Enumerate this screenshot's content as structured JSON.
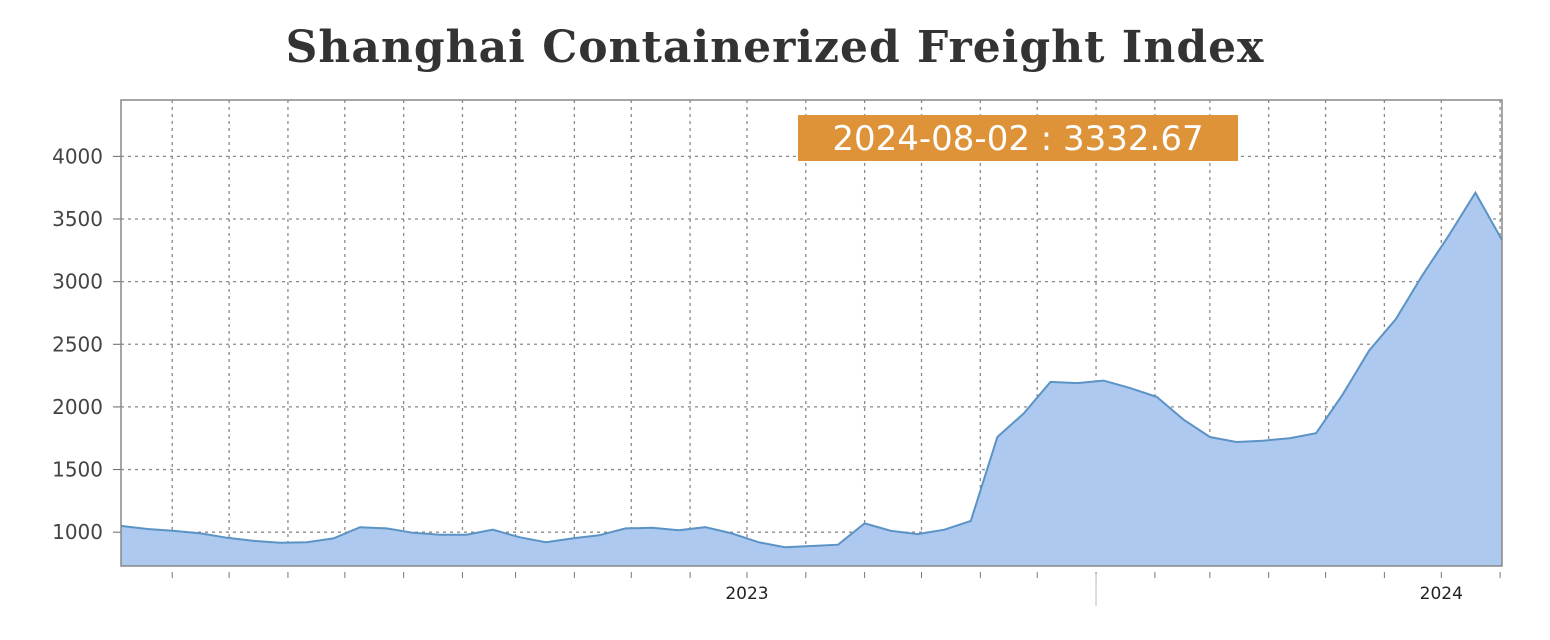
{
  "chart_data": {
    "type": "area",
    "title": "Shanghai Containerized Freight Index",
    "xlabel": "",
    "ylabel": "",
    "ylim": [
      730,
      4450
    ],
    "y_ticks": [
      1000,
      1500,
      2000,
      2500,
      3000,
      3500,
      4000
    ],
    "y_tick_labels": [
      "1000",
      "1500",
      "2000",
      "2500",
      "3000",
      "3500",
      "4000"
    ],
    "x_tick_labels": [
      "2023",
      "2024"
    ],
    "xlim": [
      "2022-08-05",
      "2024-08-02"
    ],
    "grid": true,
    "colors": {
      "fill": "#adc9f0",
      "line": "#5b93c5",
      "tooltip": "#de9338",
      "frame": "#888888"
    },
    "tooltip": {
      "date": "2024-08-02",
      "value": "3332.67",
      "separator": " : "
    },
    "series": [
      {
        "x": [
          "2022-08-05",
          "2022-08-19",
          "2022-09-02",
          "2022-09-16",
          "2022-09-30",
          "2022-10-14",
          "2022-10-28",
          "2022-11-11",
          "2022-11-25",
          "2022-12-09",
          "2022-12-23",
          "2023-01-06",
          "2023-01-20",
          "2023-02-03",
          "2023-02-17",
          "2023-03-03",
          "2023-03-17",
          "2023-03-31",
          "2023-04-14",
          "2023-04-28",
          "2023-05-12",
          "2023-05-26",
          "2023-06-09",
          "2023-06-23",
          "2023-07-07",
          "2023-07-21",
          "2023-08-04",
          "2023-08-18",
          "2023-09-01",
          "2023-09-15",
          "2023-09-29",
          "2023-10-13",
          "2023-10-27",
          "2023-11-10",
          "2023-11-24",
          "2023-12-08",
          "2023-12-22",
          "2024-01-05",
          "2024-01-19",
          "2024-02-02",
          "2024-02-16",
          "2024-03-01",
          "2024-03-15",
          "2024-03-29",
          "2024-04-12",
          "2024-04-26",
          "2024-05-10",
          "2024-05-24",
          "2024-06-07",
          "2024-06-21",
          "2024-07-05",
          "2024-07-19",
          "2024-08-02"
        ],
        "values": [
          1050,
          1025,
          1010,
          990,
          955,
          930,
          915,
          920,
          950,
          1040,
          1030,
          995,
          980,
          980,
          1020,
          960,
          920,
          950,
          975,
          1030,
          1035,
          1015,
          1040,
          990,
          920,
          880,
          890,
          900,
          1070,
          1010,
          985,
          1020,
          1090,
          1760,
          1950,
          2200,
          2190,
          2210,
          2150,
          2080,
          1900,
          1760,
          1720,
          1730,
          1750,
          1790,
          2100,
          2450,
          2700,
          3050,
          3370,
          3710,
          3332.67
        ]
      }
    ]
  }
}
